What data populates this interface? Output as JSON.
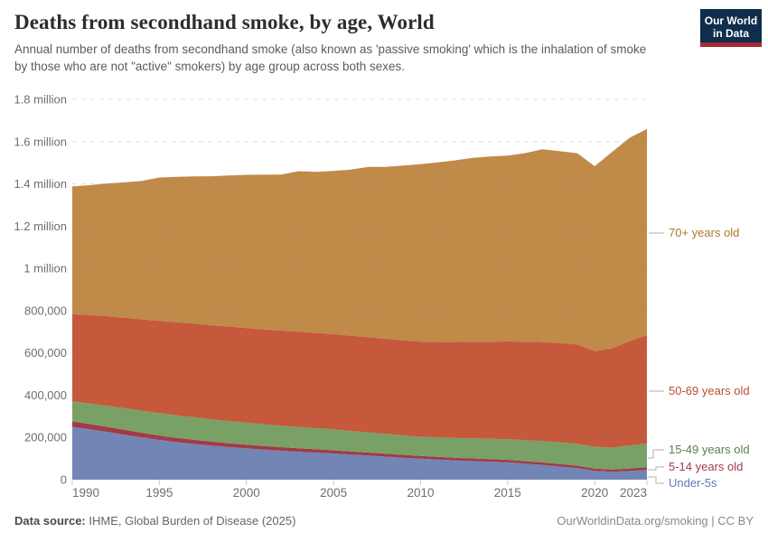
{
  "header": {
    "title": "Deaths from secondhand smoke, by age, World",
    "subtitle": "Annual number of deaths from secondhand smoke (also known as 'passive smoking' which is the inhalation of smoke by those who are not \"active\" smokers) by age group across both sexes.",
    "logo": {
      "line1": "Our World",
      "line2": "in Data",
      "bg_color": "#0f2d4c",
      "accent_color": "#a62b35"
    }
  },
  "chart_data": {
    "type": "area",
    "stacked": true,
    "title": "Deaths from secondhand smoke, by age, World",
    "xlabel": "",
    "ylabel": "",
    "ylim": [
      0,
      1800000
    ],
    "grid": "horizontal-dashed",
    "legend_position": "right",
    "x": [
      1990,
      1991,
      1992,
      1993,
      1994,
      1995,
      1996,
      1997,
      1998,
      1999,
      2000,
      2001,
      2002,
      2003,
      2004,
      2005,
      2006,
      2007,
      2008,
      2009,
      2010,
      2011,
      2012,
      2013,
      2014,
      2015,
      2016,
      2017,
      2018,
      2019,
      2020,
      2021,
      2022,
      2023
    ],
    "x_ticks": [
      1990,
      1995,
      2000,
      2005,
      2010,
      2015,
      2020,
      2023
    ],
    "y_ticks": [
      {
        "value": 0,
        "label": "0"
      },
      {
        "value": 200000,
        "label": "200,000"
      },
      {
        "value": 400000,
        "label": "400,000"
      },
      {
        "value": 600000,
        "label": "600,000"
      },
      {
        "value": 800000,
        "label": "800,000"
      },
      {
        "value": 1000000,
        "label": "1 million"
      },
      {
        "value": 1200000,
        "label": "1.2 million"
      },
      {
        "value": 1400000,
        "label": "1.4 million"
      },
      {
        "value": 1600000,
        "label": "1.6 million"
      },
      {
        "value": 1800000,
        "label": "1.8 million"
      }
    ],
    "series": [
      {
        "name": "Under-5s",
        "color": "#7285b5",
        "label_color": "#5e7cb8",
        "values": [
          250000,
          238000,
          226000,
          213000,
          200000,
          188000,
          178000,
          169000,
          161000,
          154000,
          148000,
          142000,
          137000,
          132000,
          128000,
          124000,
          119000,
          114000,
          109000,
          104000,
          99000,
          95000,
          91000,
          88000,
          85000,
          82000,
          76000,
          70000,
          62000,
          55000,
          42000,
          37000,
          41000,
          46000
        ]
      },
      {
        "name": "5-14 years old",
        "color": "#a13a49",
        "label_color": "#9e3d4c",
        "values": [
          26000,
          25000,
          24000,
          23000,
          22000,
          21000,
          20000,
          19500,
          19000,
          18500,
          18000,
          17400,
          16800,
          16200,
          15600,
          15000,
          14600,
          14200,
          13800,
          13400,
          13000,
          12800,
          12600,
          12400,
          12200,
          12000,
          11800,
          11600,
          11400,
          11200,
          10500,
          10800,
          12000,
          13000
        ]
      },
      {
        "name": "15-49 years old",
        "color": "#79a065",
        "label_color": "#578248",
        "values": [
          95000,
          98000,
          100000,
          102000,
          104000,
          106000,
          107000,
          107000,
          106000,
          105000,
          104000,
          103000,
          102000,
          101000,
          100000,
          99000,
          97000,
          96000,
          94000,
          92000,
          91000,
          92000,
          93000,
          95000,
          96000,
          97000,
          99000,
          101000,
          103000,
          104000,
          103000,
          104000,
          108000,
          112000
        ]
      },
      {
        "name": "50-69 years old",
        "color": "#c6583c",
        "label_color": "#be4e2c",
        "values": [
          412000,
          418000,
          424000,
          429000,
          433000,
          437000,
          440000,
          443000,
          445000,
          447000,
          448000,
          449000,
          450000,
          451000,
          451000,
          451000,
          451000,
          450000,
          450000,
          450000,
          450000,
          452000,
          455000,
          458000,
          460000,
          463000,
          466000,
          469000,
          470000,
          470000,
          453000,
          470000,
          495000,
          513000
        ]
      },
      {
        "name": "70+ years old",
        "color": "#c08a49",
        "label_color": "#b0762f",
        "values": [
          605000,
          615000,
          628000,
          640000,
          655000,
          678000,
          688000,
          697000,
          705000,
          715000,
          725000,
          732000,
          738000,
          760000,
          762000,
          772000,
          786000,
          806000,
          814000,
          827000,
          840000,
          850000,
          860000,
          870000,
          876000,
          880000,
          893000,
          912000,
          908000,
          905000,
          875000,
          930000,
          962000,
          976000
        ]
      }
    ]
  },
  "footer": {
    "source_label": "Data source:",
    "source_value": " IHME, Global Burden of Disease (2025)",
    "credit": "OurWorldinData.org/smoking | CC BY"
  }
}
